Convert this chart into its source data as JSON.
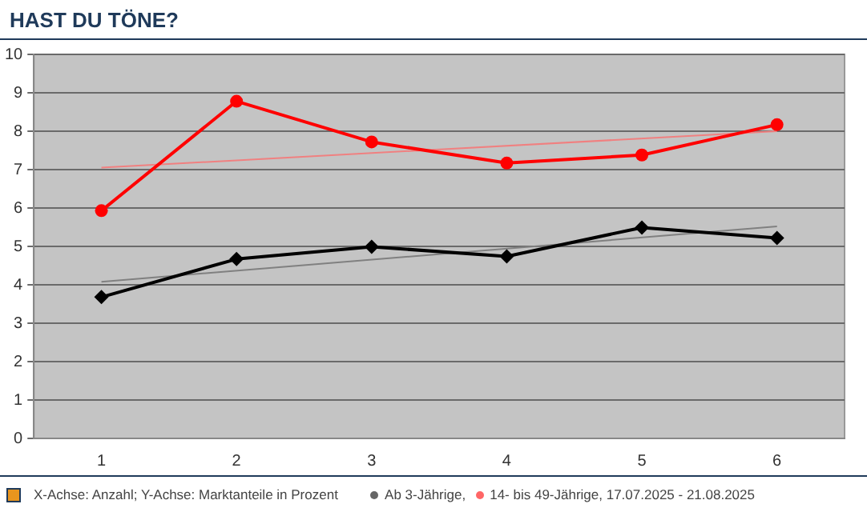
{
  "chart_data": {
    "type": "line",
    "title": "HAST DU TÖNE?",
    "categories": [
      "1",
      "2",
      "3",
      "4",
      "5",
      "6"
    ],
    "series": [
      {
        "name": "Ab 3-Jährige,",
        "color": "#000000",
        "marker": "diamond",
        "values": [
          3.68,
          4.67,
          4.99,
          4.74,
          5.49,
          5.22
        ]
      },
      {
        "name": "14- bis 49-Jährige, 17.07.2025 - 21.08.2025",
        "color": "#ff0000",
        "marker": "circle",
        "values": [
          5.93,
          8.78,
          7.72,
          7.17,
          7.38,
          8.17
        ]
      },
      {
        "type": "line",
        "color": "#808080",
        "marker": "none",
        "x": [
          "1",
          "6"
        ],
        "values": [
          4.08,
          5.52
        ]
      },
      {
        "type": "line",
        "color": "#f08080",
        "marker": "none",
        "x": [
          "1",
          "6"
        ],
        "values": [
          7.05,
          8.0
        ]
      }
    ],
    "ylim": [
      0,
      10
    ],
    "yticks": [
      0,
      1,
      2,
      3,
      4,
      5,
      6,
      7,
      8,
      9,
      10
    ],
    "grid": "y",
    "legend": "bottom",
    "annotations": [
      "X-Achse: Anzahl; Y-Achse: Marktanteile in Prozent"
    ]
  }
}
